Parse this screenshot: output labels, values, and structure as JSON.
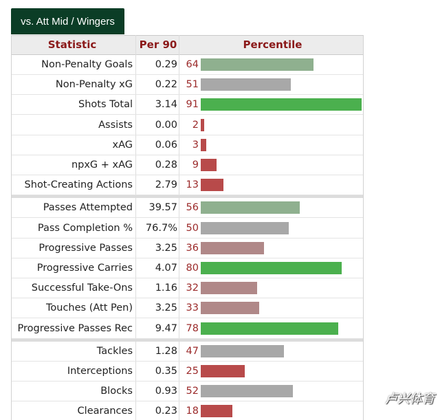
{
  "tab": {
    "label": "vs. Att Mid / Wingers"
  },
  "headers": {
    "statistic": "Statistic",
    "per90": "Per 90",
    "percentile": "Percentile"
  },
  "colors": {
    "high": "#4bb04e",
    "mid_green": "#8fb08f",
    "neutral": "#a8a8a8",
    "low_pink": "#b08888",
    "very_low": "#b84a4a",
    "pct_text": "#9b2a2a",
    "header_text": "#8b1a1a",
    "tab_bg": "#0b3d26"
  },
  "groups": [
    {
      "rows": [
        {
          "stat": "Non-Penalty Goals",
          "per90": "0.29",
          "percentile": 64,
          "tone": "mid_green"
        },
        {
          "stat": "Non-Penalty xG",
          "per90": "0.22",
          "percentile": 51,
          "tone": "neutral"
        },
        {
          "stat": "Shots Total",
          "per90": "3.14",
          "percentile": 91,
          "tone": "high"
        },
        {
          "stat": "Assists",
          "per90": "0.00",
          "percentile": 2,
          "tone": "very_low"
        },
        {
          "stat": "xAG",
          "per90": "0.06",
          "percentile": 3,
          "tone": "very_low"
        },
        {
          "stat": "npxG + xAG",
          "per90": "0.28",
          "percentile": 9,
          "tone": "very_low"
        },
        {
          "stat": "Shot-Creating Actions",
          "per90": "2.79",
          "percentile": 13,
          "tone": "very_low"
        }
      ]
    },
    {
      "rows": [
        {
          "stat": "Passes Attempted",
          "per90": "39.57",
          "percentile": 56,
          "tone": "mid_green"
        },
        {
          "stat": "Pass Completion %",
          "per90": "76.7%",
          "percentile": 50,
          "tone": "neutral"
        },
        {
          "stat": "Progressive Passes",
          "per90": "3.25",
          "percentile": 36,
          "tone": "low_pink"
        },
        {
          "stat": "Progressive Carries",
          "per90": "4.07",
          "percentile": 80,
          "tone": "high"
        },
        {
          "stat": "Successful Take-Ons",
          "per90": "1.16",
          "percentile": 32,
          "tone": "low_pink"
        },
        {
          "stat": "Touches (Att Pen)",
          "per90": "3.25",
          "percentile": 33,
          "tone": "low_pink"
        },
        {
          "stat": "Progressive Passes Rec",
          "per90": "9.47",
          "percentile": 78,
          "tone": "high"
        }
      ]
    },
    {
      "rows": [
        {
          "stat": "Tackles",
          "per90": "1.28",
          "percentile": 47,
          "tone": "neutral"
        },
        {
          "stat": "Interceptions",
          "per90": "0.35",
          "percentile": 25,
          "tone": "very_low"
        },
        {
          "stat": "Blocks",
          "per90": "0.93",
          "percentile": 52,
          "tone": "neutral"
        },
        {
          "stat": "Clearances",
          "per90": "0.23",
          "percentile": 18,
          "tone": "very_low"
        }
      ]
    }
  ],
  "watermark": "卢兴体育"
}
